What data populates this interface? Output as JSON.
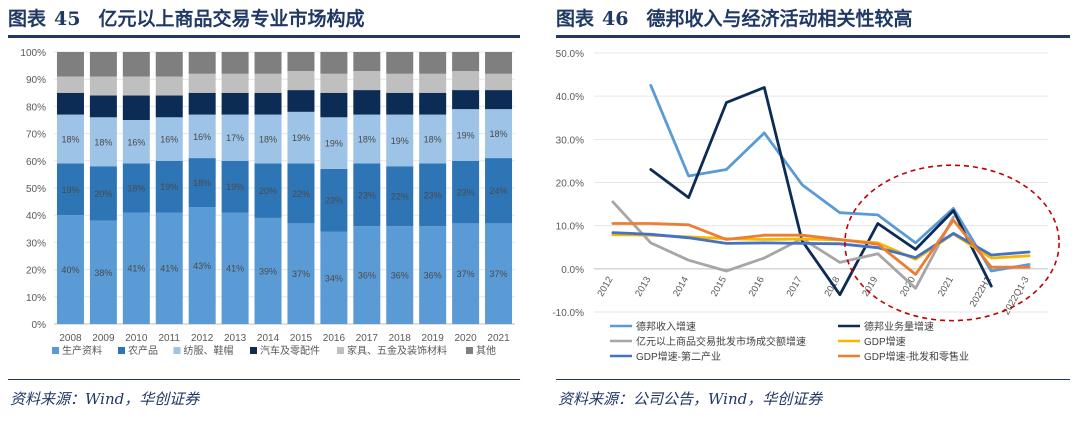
{
  "left": {
    "fig_label": "图表",
    "fig_num": "45",
    "title": "亿元以上商品交易专业市场构成",
    "source": "资料来源：Wind，华创证券"
  },
  "right": {
    "fig_label": "图表",
    "fig_num": "46",
    "title": "德邦收入与经济活动相关性较高",
    "source": "资料来源：公司公告，Wind，华创证券"
  },
  "chart_data": [
    {
      "type": "bar",
      "stacked": true,
      "percent": true,
      "categories": [
        "2008",
        "2009",
        "2010",
        "2011",
        "2012",
        "2013",
        "2014",
        "2015",
        "2016",
        "2017",
        "2018",
        "2019",
        "2020",
        "2021"
      ],
      "yticks": [
        "0%",
        "10%",
        "20%",
        "30%",
        "40%",
        "50%",
        "60%",
        "70%",
        "80%",
        "90%",
        "100%"
      ],
      "ylim": [
        0,
        100
      ],
      "legend_position": "bottom",
      "series": [
        {
          "name": "生产资料",
          "color": "#5b9bd5",
          "values": [
            40,
            38,
            41,
            41,
            43,
            41,
            39,
            37,
            34,
            36,
            36,
            36,
            37,
            37
          ],
          "labels": [
            "40%",
            "38%",
            "41%",
            "41%",
            "43%",
            "41%",
            "39%",
            "37%",
            "34%",
            "36%",
            "36%",
            "36%",
            "37%",
            "37%"
          ]
        },
        {
          "name": "农产品",
          "color": "#2e75b6",
          "values": [
            19,
            20,
            18,
            19,
            18,
            19,
            20,
            22,
            23,
            23,
            22,
            23,
            23,
            24
          ],
          "labels": [
            "19%",
            "20%",
            "18%",
            "19%",
            "18%",
            "19%",
            "20%",
            "22%",
            "23%",
            "23%",
            "22%",
            "23%",
            "23%",
            "24%"
          ]
        },
        {
          "name": "纺服、鞋帽",
          "color": "#9dc3e6",
          "values": [
            18,
            18,
            16,
            16,
            16,
            17,
            18,
            19,
            19,
            18,
            19,
            18,
            19,
            18
          ],
          "labels": [
            "18%",
            "18%",
            "16%",
            "16%",
            "16%",
            "17%",
            "18%",
            "19%",
            "19%",
            "18%",
            "19%",
            "18%",
            "19%",
            "18%"
          ]
        },
        {
          "name": "汽车及零配件",
          "color": "#0c2c55",
          "values": [
            8,
            8,
            9,
            8,
            8,
            8,
            8,
            8,
            9,
            9,
            8,
            8,
            7,
            7
          ]
        },
        {
          "name": "家具、五金及装饰材料",
          "color": "#bfbfbf",
          "values": [
            6,
            7,
            7,
            7,
            7,
            7,
            7,
            7,
            7,
            7,
            7,
            7,
            7,
            6
          ]
        },
        {
          "name": "其他",
          "color": "#7f7f7f",
          "values": [
            9,
            9,
            9,
            9,
            8,
            8,
            8,
            7,
            8,
            7,
            8,
            8,
            7,
            8
          ]
        }
      ]
    },
    {
      "type": "line",
      "categories": [
        "2012",
        "2013",
        "2014",
        "2015",
        "2016",
        "2017",
        "2018",
        "2019",
        "2020",
        "2021",
        "2022H1",
        "2022Q1-3"
      ],
      "yticks": [
        "-10.0%",
        "0.0%",
        "10.0%",
        "20.0%",
        "30.0%",
        "40.0%",
        "50.0%"
      ],
      "ylim": [
        -10,
        50
      ],
      "annotation": "dashed red ellipse around 2019–2022Q1-3",
      "legend_position": "bottom",
      "series": [
        {
          "name": "德邦收入增速",
          "color": "#5b9bd5",
          "values": [
            null,
            42.5,
            21.5,
            23,
            31.5,
            19.5,
            13,
            12.5,
            6,
            14,
            -0.5,
            1
          ]
        },
        {
          "name": "德邦业务量增速",
          "color": "#0c2c55",
          "values": [
            null,
            23,
            16.5,
            38.5,
            42,
            6.5,
            -6,
            10.5,
            4.5,
            13.5,
            -4,
            null
          ]
        },
        {
          "name": "亿元以上商品交易批发市场成交额增速",
          "color": "#a6a6a6",
          "values": [
            15.5,
            6,
            2,
            -0.5,
            2.5,
            7,
            1.5,
            3.5,
            -4.5,
            12,
            null,
            null
          ]
        },
        {
          "name": "GDP增速",
          "color": "#f5b800",
          "values": [
            7.9,
            7.8,
            7.4,
            7.0,
            6.8,
            6.9,
            6.7,
            6.0,
            2.2,
            8.1,
            2.5,
            3.0
          ]
        },
        {
          "name": "GDP增速-第二产业",
          "color": "#4472c4",
          "values": [
            8.4,
            8.0,
            7.2,
            5.9,
            6.0,
            5.9,
            5.8,
            4.9,
            2.6,
            8.2,
            3.2,
            3.9
          ]
        },
        {
          "name": "GDP增速-批发和零售业",
          "color": "#ed7d31",
          "values": [
            10.5,
            10.5,
            10.2,
            6.8,
            7.8,
            7.8,
            6.8,
            5.7,
            -1.3,
            11.3,
            0.4,
            0.4
          ]
        }
      ]
    }
  ]
}
